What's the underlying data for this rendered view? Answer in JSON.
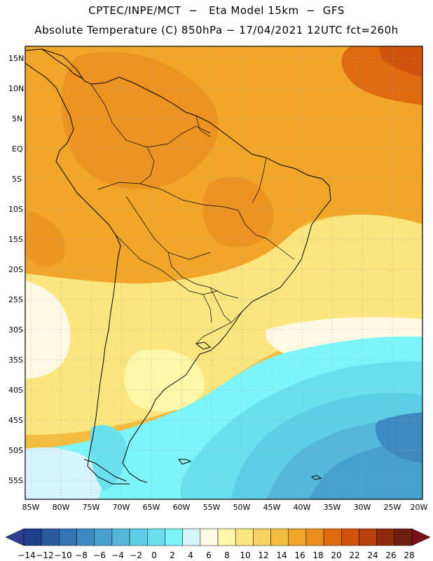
{
  "header": {
    "line1": "CPTEC/INPE/MCT  −   Eta Model 15km  −  GFS",
    "line2": "Absolute Temperature (C) 850hPa − 17/04/2021 12UTC fct=260h"
  },
  "map": {
    "lat_labels": [
      "15N",
      "10N",
      "5N",
      "EQ",
      "5S",
      "10S",
      "15S",
      "20S",
      "25S",
      "30S",
      "35S",
      "40S",
      "45S",
      "50S",
      "55S"
    ],
    "lon_labels": [
      "85W",
      "80W",
      "75W",
      "70W",
      "65W",
      "60W",
      "55W",
      "50W",
      "45W",
      "40W",
      "35W",
      "30W",
      "25W",
      "20W"
    ]
  },
  "colorbar": {
    "labels": [
      "-14",
      "-12",
      "-10",
      "-8",
      "-6",
      "-4",
      "-2",
      "0",
      "2",
      "4",
      "6",
      "8",
      "10",
      "12",
      "14",
      "16",
      "18",
      "20",
      "22",
      "24",
      "26",
      "28"
    ],
    "colors": [
      "#1f3f8c",
      "#2a5aa0",
      "#3273b3",
      "#3d89c2",
      "#48a0ce",
      "#55b8db",
      "#5ccfe6",
      "#6ae0ef",
      "#7df5f8",
      "#d6f6fc",
      "#fff8e2",
      "#fdf6a8",
      "#fbe57f",
      "#f8d262",
      "#f3bd42",
      "#f1a62a",
      "#eb8c1e",
      "#e06a10",
      "#d2540c",
      "#b7400c",
      "#8f2a0c",
      "#6e1d12"
    ],
    "under_color": "#2e3f8f",
    "over_color": "#7a0f1e"
  }
}
